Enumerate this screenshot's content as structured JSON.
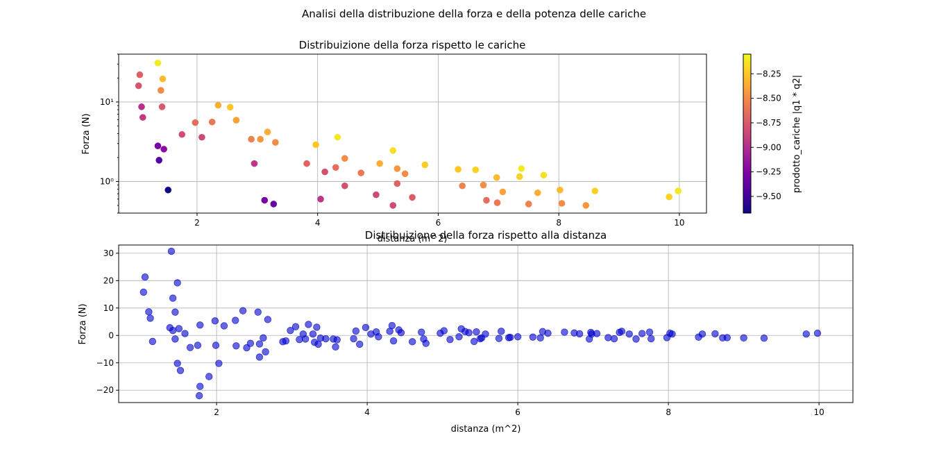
{
  "figure": {
    "suptitle": "Analisi della distribuzione della forza e della potenza delle cariche"
  },
  "chart_data": [
    {
      "type": "scatter",
      "title": "Distribuizione della forza rispetto le cariche",
      "xlabel": "distanza (m^2)",
      "ylabel": "Forza (N)",
      "yscale": "log",
      "xlim": [
        0.7,
        10.45
      ],
      "ylim": [
        0.4,
        40
      ],
      "grid": true,
      "xticks": [
        2,
        4,
        6,
        8,
        10
      ],
      "xtick_labels": [
        "2",
        "4",
        "6",
        "8",
        "10"
      ],
      "yticks": [
        1,
        10
      ],
      "ytick_labels": [
        "10⁰",
        "10¹"
      ],
      "colorbar": {
        "label": "prodotto_cariche |q1 * q2|",
        "cmap": "plasma",
        "range": [
          -9.67,
          -8.05
        ],
        "ticks": [
          -8.25,
          -8.5,
          -8.75,
          -9.0,
          -9.25,
          -9.5
        ],
        "tick_labels": [
          "−8.25",
          "−8.50",
          "−8.75",
          "−9.00",
          "−9.25",
          "−9.50"
        ]
      },
      "points": [
        {
          "x": 1.05,
          "y": 22.0,
          "c": -8.72
        },
        {
          "x": 1.03,
          "y": 16.0,
          "c": -8.78
        },
        {
          "x": 1.08,
          "y": 8.7,
          "c": -8.98
        },
        {
          "x": 1.1,
          "y": 6.4,
          "c": -8.93
        },
        {
          "x": 1.35,
          "y": 31.0,
          "c": -8.1
        },
        {
          "x": 1.43,
          "y": 19.5,
          "c": -8.3
        },
        {
          "x": 1.4,
          "y": 14.0,
          "c": -8.5
        },
        {
          "x": 1.42,
          "y": 8.7,
          "c": -8.75
        },
        {
          "x": 1.35,
          "y": 2.8,
          "c": -9.3
        },
        {
          "x": 1.45,
          "y": 2.55,
          "c": -9.2
        },
        {
          "x": 1.37,
          "y": 1.85,
          "c": -9.45
        },
        {
          "x": 1.52,
          "y": 0.78,
          "c": -9.67
        },
        {
          "x": 1.75,
          "y": 3.9,
          "c": -8.83
        },
        {
          "x": 1.97,
          "y": 5.5,
          "c": -8.65
        },
        {
          "x": 2.08,
          "y": 3.6,
          "c": -8.85
        },
        {
          "x": 2.25,
          "y": 5.6,
          "c": -8.6
        },
        {
          "x": 2.35,
          "y": 9.1,
          "c": -8.35
        },
        {
          "x": 2.55,
          "y": 8.6,
          "c": -8.25
        },
        {
          "x": 2.65,
          "y": 5.9,
          "c": -8.4
        },
        {
          "x": 2.9,
          "y": 3.4,
          "c": -8.55
        },
        {
          "x": 2.95,
          "y": 1.68,
          "c": -8.95
        },
        {
          "x": 3.05,
          "y": 3.4,
          "c": -8.45
        },
        {
          "x": 3.17,
          "y": 4.2,
          "c": -8.35
        },
        {
          "x": 3.3,
          "y": 3.1,
          "c": -8.5
        },
        {
          "x": 3.12,
          "y": 0.58,
          "c": -9.3
        },
        {
          "x": 3.27,
          "y": 0.52,
          "c": -9.35
        },
        {
          "x": 3.82,
          "y": 1.68,
          "c": -8.7
        },
        {
          "x": 3.97,
          "y": 2.9,
          "c": -8.25
        },
        {
          "x": 4.05,
          "y": 0.6,
          "c": -8.95
        },
        {
          "x": 4.12,
          "y": 1.32,
          "c": -8.8
        },
        {
          "x": 4.3,
          "y": 1.5,
          "c": -8.65
        },
        {
          "x": 4.33,
          "y": 3.6,
          "c": -8.12
        },
        {
          "x": 4.45,
          "y": 1.95,
          "c": -8.5
        },
        {
          "x": 4.45,
          "y": 0.88,
          "c": -8.8
        },
        {
          "x": 4.72,
          "y": 1.28,
          "c": -8.6
        },
        {
          "x": 4.97,
          "y": 0.68,
          "c": -8.85
        },
        {
          "x": 5.03,
          "y": 1.68,
          "c": -8.35
        },
        {
          "x": 5.25,
          "y": 2.45,
          "c": -8.15
        },
        {
          "x": 5.32,
          "y": 1.45,
          "c": -8.45
        },
        {
          "x": 5.32,
          "y": 0.94,
          "c": -8.7
        },
        {
          "x": 5.25,
          "y": 0.5,
          "c": -8.85
        },
        {
          "x": 5.45,
          "y": 1.25,
          "c": -8.5
        },
        {
          "x": 5.57,
          "y": 0.63,
          "c": -8.75
        },
        {
          "x": 5.78,
          "y": 1.62,
          "c": -8.22
        },
        {
          "x": 6.33,
          "y": 1.42,
          "c": -8.25
        },
        {
          "x": 6.4,
          "y": 0.88,
          "c": -8.55
        },
        {
          "x": 6.62,
          "y": 1.4,
          "c": -8.2
        },
        {
          "x": 6.75,
          "y": 0.9,
          "c": -8.5
        },
        {
          "x": 6.8,
          "y": 0.58,
          "c": -8.65
        },
        {
          "x": 6.97,
          "y": 1.12,
          "c": -8.3
        },
        {
          "x": 6.98,
          "y": 0.54,
          "c": -8.6
        },
        {
          "x": 7.07,
          "y": 0.74,
          "c": -8.4
        },
        {
          "x": 7.35,
          "y": 1.15,
          "c": -8.2
        },
        {
          "x": 7.38,
          "y": 1.45,
          "c": -8.1
        },
        {
          "x": 7.5,
          "y": 0.52,
          "c": -8.55
        },
        {
          "x": 7.65,
          "y": 0.72,
          "c": -8.35
        },
        {
          "x": 7.75,
          "y": 1.2,
          "c": -8.15
        },
        {
          "x": 8.02,
          "y": 0.78,
          "c": -8.3
        },
        {
          "x": 8.05,
          "y": 0.53,
          "c": -8.5
        },
        {
          "x": 8.45,
          "y": 0.5,
          "c": -8.45
        },
        {
          "x": 8.6,
          "y": 0.76,
          "c": -8.2
        },
        {
          "x": 9.83,
          "y": 0.64,
          "c": -8.2
        },
        {
          "x": 9.98,
          "y": 0.76,
          "c": -8.12
        }
      ]
    },
    {
      "type": "scatter",
      "title": "Distribuizione della forza rispetto alla distanza",
      "xlabel": "distanza (m^2)",
      "ylabel": "Forza (N)",
      "xlim": [
        0.7,
        10.45
      ],
      "ylim": [
        -24.5,
        33.0
      ],
      "grid": true,
      "color": "#0000cc",
      "alpha": 0.6,
      "xticks": [
        2,
        4,
        6,
        8,
        10
      ],
      "xtick_labels": [
        "2",
        "4",
        "6",
        "8",
        "10"
      ],
      "yticks": [
        -20,
        -10,
        0,
        10,
        20,
        30
      ],
      "ytick_labels": [
        "−20",
        "−10",
        "0",
        "10",
        "20",
        "30"
      ],
      "x": [
        1.05,
        1.03,
        1.1,
        1.12,
        1.15,
        1.4,
        1.42,
        1.45,
        1.45,
        1.48,
        1.48,
        1.5,
        1.52,
        1.38,
        1.42,
        1.58,
        1.65,
        1.75,
        1.78,
        1.78,
        1.77,
        1.9,
        1.98,
        1.99,
        2.03,
        2.1,
        2.25,
        2.26,
        2.35,
        2.4,
        2.45,
        2.55,
        2.57,
        2.57,
        2.62,
        2.65,
        2.68,
        2.88,
        2.92,
        2.98,
        3.05,
        3.1,
        3.15,
        3.18,
        3.22,
        3.28,
        3.3,
        3.33,
        3.35,
        3.38,
        3.45,
        3.55,
        3.58,
        3.6,
        3.82,
        3.85,
        3.9,
        3.98,
        4.05,
        4.12,
        4.15,
        4.3,
        4.33,
        4.35,
        4.42,
        4.45,
        4.6,
        4.72,
        4.75,
        4.78,
        4.97,
        5.02,
        5.1,
        5.22,
        5.25,
        5.3,
        5.35,
        5.42,
        5.45,
        5.5,
        5.52,
        5.57,
        5.75,
        5.78,
        5.88,
        5.9,
        6.0,
        6.2,
        6.3,
        6.33,
        6.4,
        6.62,
        6.75,
        6.82,
        6.95,
        6.97,
        6.98,
        7.05,
        7.2,
        7.28,
        7.35,
        7.38,
        7.48,
        7.57,
        7.65,
        7.75,
        7.77,
        7.98,
        8.02,
        8.05,
        8.4,
        8.45,
        8.62,
        8.72,
        8.78,
        9.0,
        9.27,
        9.83,
        9.98
      ],
      "y": [
        21.3,
        15.8,
        8.6,
        6.3,
        -2.2,
        30.7,
        13.6,
        8.5,
        -1.3,
        19.2,
        -10.2,
        2.5,
        -12.8,
        2.8,
        1.8,
        0.7,
        -4.4,
        -3.6,
        3.8,
        -18.6,
        -22.0,
        -15.0,
        5.3,
        -3.6,
        -10.2,
        3.5,
        5.5,
        -3.8,
        9.0,
        -4.5,
        -2.9,
        8.5,
        -3.1,
        -7.9,
        -0.9,
        -6.0,
        5.8,
        -2.3,
        -2.0,
        1.8,
        3.2,
        -1.5,
        0.5,
        -1.3,
        4.0,
        0.5,
        -2.5,
        3.0,
        -3.2,
        -1.0,
        -1.2,
        -1.3,
        -4.2,
        -1.6,
        -1.2,
        1.6,
        -3.2,
        2.9,
        0.5,
        1.3,
        -0.5,
        1.5,
        3.6,
        -2.0,
        2.0,
        1.0,
        -2.3,
        1.2,
        -1.3,
        -2.9,
        0.8,
        1.7,
        -1.5,
        -0.5,
        2.4,
        1.4,
        1.0,
        -2.2,
        1.3,
        -1.2,
        -0.9,
        0.5,
        -1.1,
        1.5,
        -0.8,
        -0.7,
        -0.5,
        -0.6,
        -0.9,
        1.4,
        0.8,
        1.2,
        0.9,
        0.6,
        -1.3,
        1.1,
        0.5,
        0.7,
        -0.8,
        -1.2,
        1.1,
        1.5,
        0.5,
        -1.3,
        0.7,
        1.2,
        -1.2,
        -0.8,
        0.8,
        0.5,
        -0.6,
        0.5,
        0.6,
        -0.9,
        -0.8,
        -0.9,
        -1.0,
        0.5,
        0.8
      ]
    }
  ]
}
